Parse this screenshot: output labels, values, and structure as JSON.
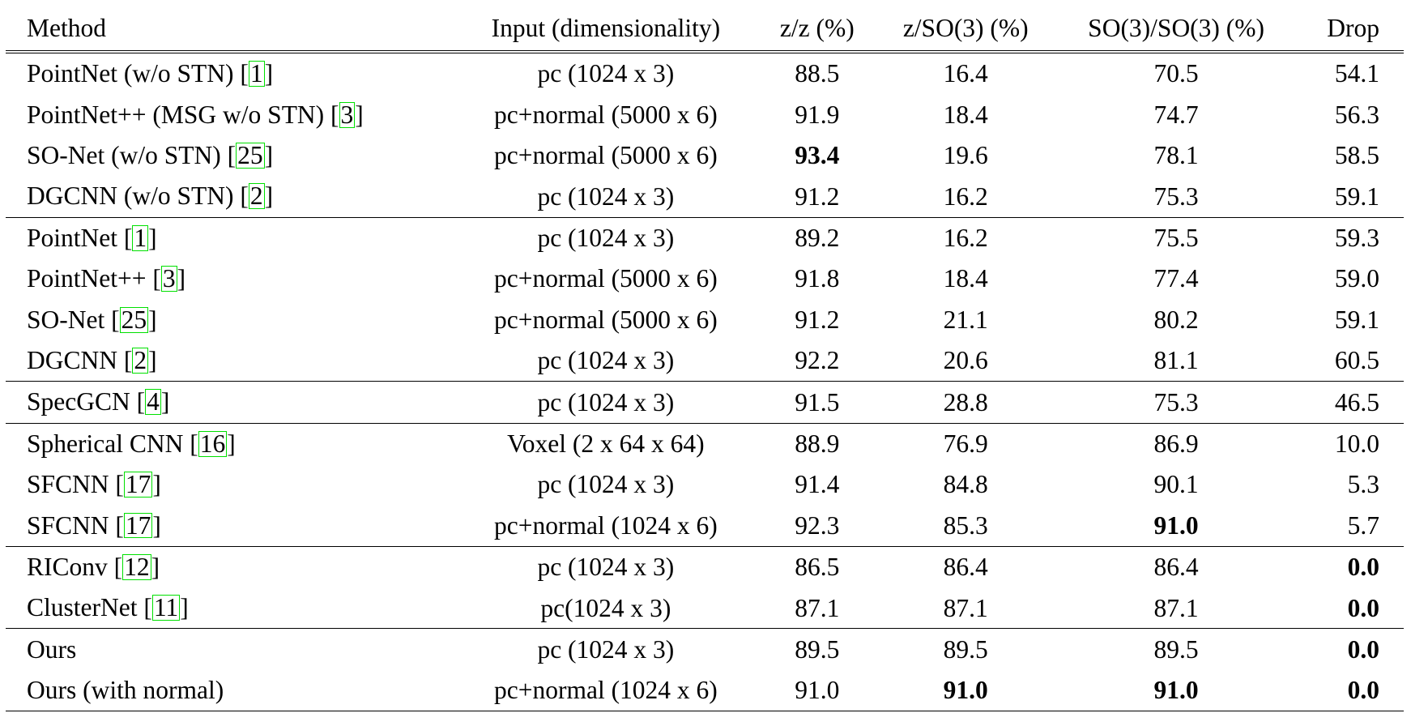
{
  "table": {
    "headers": [
      "Method",
      "Input (dimensionality)",
      "z/z (%)",
      "z/SO(3) (%)",
      "SO(3)/SO(3) (%)",
      "Drop"
    ],
    "rows": [
      {
        "method": "PointNet (w/o STN) [",
        "ref": "1",
        "ref_close": "]",
        "input": "pc (1024 x 3)",
        "zz": "88.5",
        "zso3": "16.4",
        "so3so3": "70.5",
        "drop": "54.1",
        "group_start": false
      },
      {
        "method": "PointNet++ (MSG w/o STN) [",
        "ref": "3",
        "ref_close": "]",
        "input": "pc+normal (5000 x 6)",
        "zz": "91.9",
        "zso3": "18.4",
        "so3so3": "74.7",
        "drop": "56.3",
        "group_start": false
      },
      {
        "method": "SO-Net (w/o STN) [",
        "ref": "25",
        "ref_close": "]",
        "input": "pc+normal (5000 x 6)",
        "zz": "93.4",
        "zso3": "19.6",
        "so3so3": "78.1",
        "drop": "58.5",
        "bold": [
          "zz"
        ],
        "group_start": false
      },
      {
        "method": "DGCNN (w/o STN) [",
        "ref": "2",
        "ref_close": "]",
        "input": "pc (1024 x 3)",
        "zz": "91.2",
        "zso3": "16.2",
        "so3so3": "75.3",
        "drop": "59.1",
        "group_start": false
      },
      {
        "method": "PointNet [",
        "ref": "1",
        "ref_close": "]",
        "input": "pc (1024 x 3)",
        "zz": "89.2",
        "zso3": "16.2",
        "so3so3": "75.5",
        "drop": "59.3",
        "group_start": true
      },
      {
        "method": "PointNet++ [",
        "ref": "3",
        "ref_close": "]",
        "input": "pc+normal (5000 x 6)",
        "zz": "91.8",
        "zso3": "18.4",
        "so3so3": "77.4",
        "drop": "59.0",
        "group_start": false
      },
      {
        "method": "SO-Net [",
        "ref": "25",
        "ref_close": "]",
        "input": "pc+normal (5000 x 6)",
        "zz": "91.2",
        "zso3": "21.1",
        "so3so3": "80.2",
        "drop": "59.1",
        "group_start": false
      },
      {
        "method": "DGCNN [",
        "ref": "2",
        "ref_close": "]",
        "input": "pc (1024 x 3)",
        "zz": "92.2",
        "zso3": "20.6",
        "so3so3": "81.1",
        "drop": "60.5",
        "group_start": false
      },
      {
        "method": "SpecGCN [",
        "ref": "4",
        "ref_close": "]",
        "input": "pc (1024 x 3)",
        "zz": "91.5",
        "zso3": "28.8",
        "so3so3": "75.3",
        "drop": "46.5",
        "group_start": true
      },
      {
        "method": "Spherical CNN [",
        "ref": "16",
        "ref_close": "]",
        "input": "Voxel (2 x 64 x 64)",
        "zz": "88.9",
        "zso3": "76.9",
        "so3so3": "86.9",
        "drop": "10.0",
        "group_start": true
      },
      {
        "method": "SFCNN [",
        "ref": "17",
        "ref_close": "]",
        "input": "pc (1024 x 3)",
        "zz": "91.4",
        "zso3": "84.8",
        "so3so3": "90.1",
        "drop": "5.3",
        "group_start": false
      },
      {
        "method": "SFCNN [",
        "ref": "17",
        "ref_close": "]",
        "input": "pc+normal (1024 x 6)",
        "zz": "92.3",
        "zso3": "85.3",
        "so3so3": "91.0",
        "drop": "5.7",
        "bold": [
          "so3so3"
        ],
        "group_start": false
      },
      {
        "method": "RIConv [",
        "ref": "12",
        "ref_close": "]",
        "input": "pc (1024 x 3)",
        "zz": "86.5",
        "zso3": "86.4",
        "so3so3": "86.4",
        "drop": "0.0",
        "bold": [
          "drop"
        ],
        "group_start": true
      },
      {
        "method": "ClusterNet [",
        "ref": "11",
        "ref_close": "]",
        "input": "pc(1024 x 3)",
        "zz": "87.1",
        "zso3": "87.1",
        "so3so3": "87.1",
        "drop": "0.0",
        "bold": [
          "drop"
        ],
        "group_start": false
      },
      {
        "method": "Ours",
        "ref": "",
        "ref_close": "",
        "input": "pc (1024 x 3)",
        "zz": "89.5",
        "zso3": "89.5",
        "so3so3": "89.5",
        "drop": "0.0",
        "bold": [
          "drop"
        ],
        "group_start": true
      },
      {
        "method": "Ours (with normal)",
        "ref": "",
        "ref_close": "",
        "input": "pc+normal (1024 x 6)",
        "zz": "91.0",
        "zso3": "91.0",
        "so3so3": "91.0",
        "drop": "0.0",
        "bold": [
          "zso3",
          "so3so3",
          "drop"
        ],
        "group_start": false
      }
    ],
    "colors": {
      "ref_box": "#00e000",
      "text": "#000000"
    }
  }
}
